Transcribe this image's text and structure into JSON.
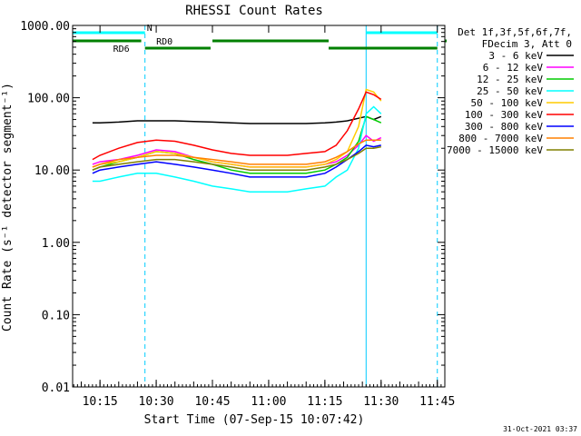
{
  "chart_data": {
    "type": "line",
    "title": "RHESSI Count Rates",
    "xlabel": "Start Time (07-Sep-15 10:07:42)",
    "ylabel": "Count Rate (s⁻¹ detector segment⁻¹)",
    "yscale": "log",
    "ylim": [
      0.01,
      1000
    ],
    "xlim": [
      "10:07:42",
      "11:47:00"
    ],
    "x_ticks": [
      "10:15",
      "10:30",
      "10:45",
      "11:00",
      "11:15",
      "11:30",
      "11:45"
    ],
    "y_ticks": [
      "0.01",
      "0.10",
      "1.00",
      "10.00",
      "100.00",
      "1000.00"
    ],
    "legend_placement": "right",
    "legend_header": [
      "Det 1f,3f,5f,6f,7f,",
      "FDecim 3, Att 0"
    ],
    "x": [
      "10:13",
      "10:15",
      "10:20",
      "10:25",
      "10:30",
      "10:35",
      "10:40",
      "10:45",
      "10:50",
      "10:55",
      "11:00",
      "11:05",
      "11:10",
      "11:15",
      "11:18",
      "11:21",
      "11:24",
      "11:26",
      "11:28",
      "11:30"
    ],
    "series": [
      {
        "name": "3 - 6 keV",
        "color": "#000000",
        "values": [
          45,
          45,
          46,
          48,
          48,
          48,
          47,
          46,
          45,
          44,
          44,
          44,
          44,
          45,
          46,
          48,
          52,
          55,
          50,
          55
        ]
      },
      {
        "name": "6 - 12 keV",
        "color": "#ff00ff",
        "values": [
          12,
          13,
          14,
          16,
          19,
          18,
          15,
          13,
          12,
          11,
          11,
          11,
          11,
          12,
          13,
          16,
          22,
          30,
          25,
          28
        ]
      },
      {
        "name": "12 - 25 keV",
        "color": "#00cc00",
        "values": [
          10,
          11,
          13,
          15,
          18,
          17,
          14,
          12,
          10,
          9,
          9,
          9,
          9,
          10,
          12,
          15,
          25,
          55,
          50,
          45
        ]
      },
      {
        "name": "25 - 50 keV",
        "color": "#00ffff",
        "values": [
          7,
          7,
          8,
          9,
          9,
          8,
          7,
          6,
          5.5,
          5,
          5,
          5,
          5.5,
          6,
          8,
          10,
          20,
          60,
          75,
          60
        ]
      },
      {
        "name": "50 - 100 keV",
        "color": "#ffcc00",
        "values": [
          11,
          12,
          13,
          15,
          18,
          17,
          15,
          13,
          12,
          11,
          11,
          11,
          11,
          12,
          14,
          18,
          40,
          130,
          120,
          90
        ]
      },
      {
        "name": "100 - 300 keV",
        "color": "#ff0000",
        "values": [
          14,
          16,
          20,
          24,
          26,
          25,
          22,
          19,
          17,
          16,
          16,
          16,
          17,
          18,
          22,
          35,
          70,
          120,
          110,
          95
        ]
      },
      {
        "name": "300 - 800 keV",
        "color": "#0000ff",
        "values": [
          9,
          10,
          11,
          12,
          13,
          12,
          11,
          10,
          9,
          8,
          8,
          8,
          8,
          9,
          11,
          14,
          18,
          22,
          21,
          22
        ]
      },
      {
        "name": "800 - 7000 keV",
        "color": "#ff8000",
        "values": [
          11,
          12,
          14,
          15,
          16,
          16,
          15,
          14,
          13,
          12,
          12,
          12,
          12,
          13,
          15,
          18,
          23,
          26,
          26,
          26
        ]
      },
      {
        "name": "7000 - 15000 keV",
        "color": "#808000",
        "values": [
          10,
          11,
          12,
          13,
          14,
          14,
          13,
          12,
          11,
          10,
          10,
          10,
          10,
          11,
          12,
          14,
          17,
          20,
          20,
          21
        ]
      }
    ],
    "attenuator_bars": [
      {
        "label": "RD0",
        "color": "#008000",
        "segments": [
          [
            "10:07:42",
            "10:26:00"
          ],
          [
            "10:45:00",
            "11:16:00"
          ],
          [
            "11:47:00",
            "11:47:00"
          ]
        ]
      },
      {
        "label": "RD6",
        "color": "#008000",
        "segments": [
          [
            "10:27:00",
            "10:44:30"
          ],
          [
            "11:16:00",
            "11:45:00"
          ]
        ]
      },
      {
        "label": "N",
        "color": "#00ffff",
        "segments": [
          [
            "10:07:42",
            "10:27:00"
          ],
          [
            "11:26:00",
            "11:45:00"
          ]
        ]
      }
    ],
    "vertical_markers": [
      "10:07:42",
      "10:27:00",
      "11:26:00",
      "11:45:00"
    ]
  },
  "footer": {
    "timestamp": "31-Oct-2021 03:37"
  }
}
